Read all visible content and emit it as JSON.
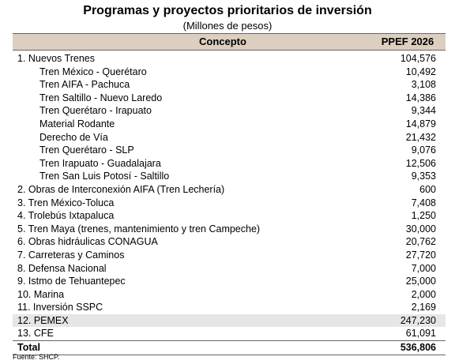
{
  "title": "Programas y proyectos prioritarios de inversión",
  "subtitle": "(Millones de pesos)",
  "header": {
    "concept": "Concepto",
    "value": "PPEF 2026"
  },
  "rows": [
    {
      "label": "1. Nuevos Trenes",
      "value": "104,576",
      "level": 0
    },
    {
      "label": "Tren México - Querétaro",
      "value": "10,492",
      "level": 1
    },
    {
      "label": "Tren AIFA - Pachuca",
      "value": "3,108",
      "level": 1
    },
    {
      "label": "Tren Saltillo - Nuevo Laredo",
      "value": "14,386",
      "level": 1
    },
    {
      "label": "Tren Querétaro - Irapuato",
      "value": "9,344",
      "level": 1
    },
    {
      "label": "Material Rodante",
      "value": "14,879",
      "level": 1
    },
    {
      "label": "Derecho de Vía",
      "value": "21,432",
      "level": 1
    },
    {
      "label": "Tren Querétaro - SLP",
      "value": "9,076",
      "level": 1
    },
    {
      "label": "Tren Irapuato - Guadalajara",
      "value": "12,506",
      "level": 1
    },
    {
      "label": "Tren San Luis Potosí - Saltillo",
      "value": "9,353",
      "level": 1
    },
    {
      "label": "2. Obras de Interconexión AIFA (Tren Lechería)",
      "value": "600",
      "level": 0
    },
    {
      "label": "3. Tren México-Toluca",
      "value": "7,408",
      "level": 0
    },
    {
      "label": "4. Trolebús Ixtapaluca",
      "value": "1,250",
      "level": 0
    },
    {
      "label": "5. Tren Maya (trenes, mantenimiento y tren Campeche)",
      "value": "30,000",
      "level": 0
    },
    {
      "label": "6. Obras hidráulicas CONAGUA",
      "value": "20,762",
      "level": 0
    },
    {
      "label": "7. Carreteras y Caminos",
      "value": "27,720",
      "level": 0
    },
    {
      "label": "8. Defensa Nacional",
      "value": "7,000",
      "level": 0
    },
    {
      "label": "9. Istmo de Tehuantepec",
      "value": "25,000",
      "level": 0
    },
    {
      "label": "10. Marina",
      "value": "2,000",
      "level": 0
    },
    {
      "label": "11. Inversión SSPC",
      "value": "2,169",
      "level": 0
    },
    {
      "label": "12. PEMEX",
      "value": "247,230",
      "level": 0,
      "highlight": true
    },
    {
      "label": "13. CFE",
      "value": "61,091",
      "level": 0
    },
    {
      "label": "Total",
      "value": "536,806",
      "level": 0,
      "total": true
    }
  ],
  "source": "Fuente: SHCP."
}
